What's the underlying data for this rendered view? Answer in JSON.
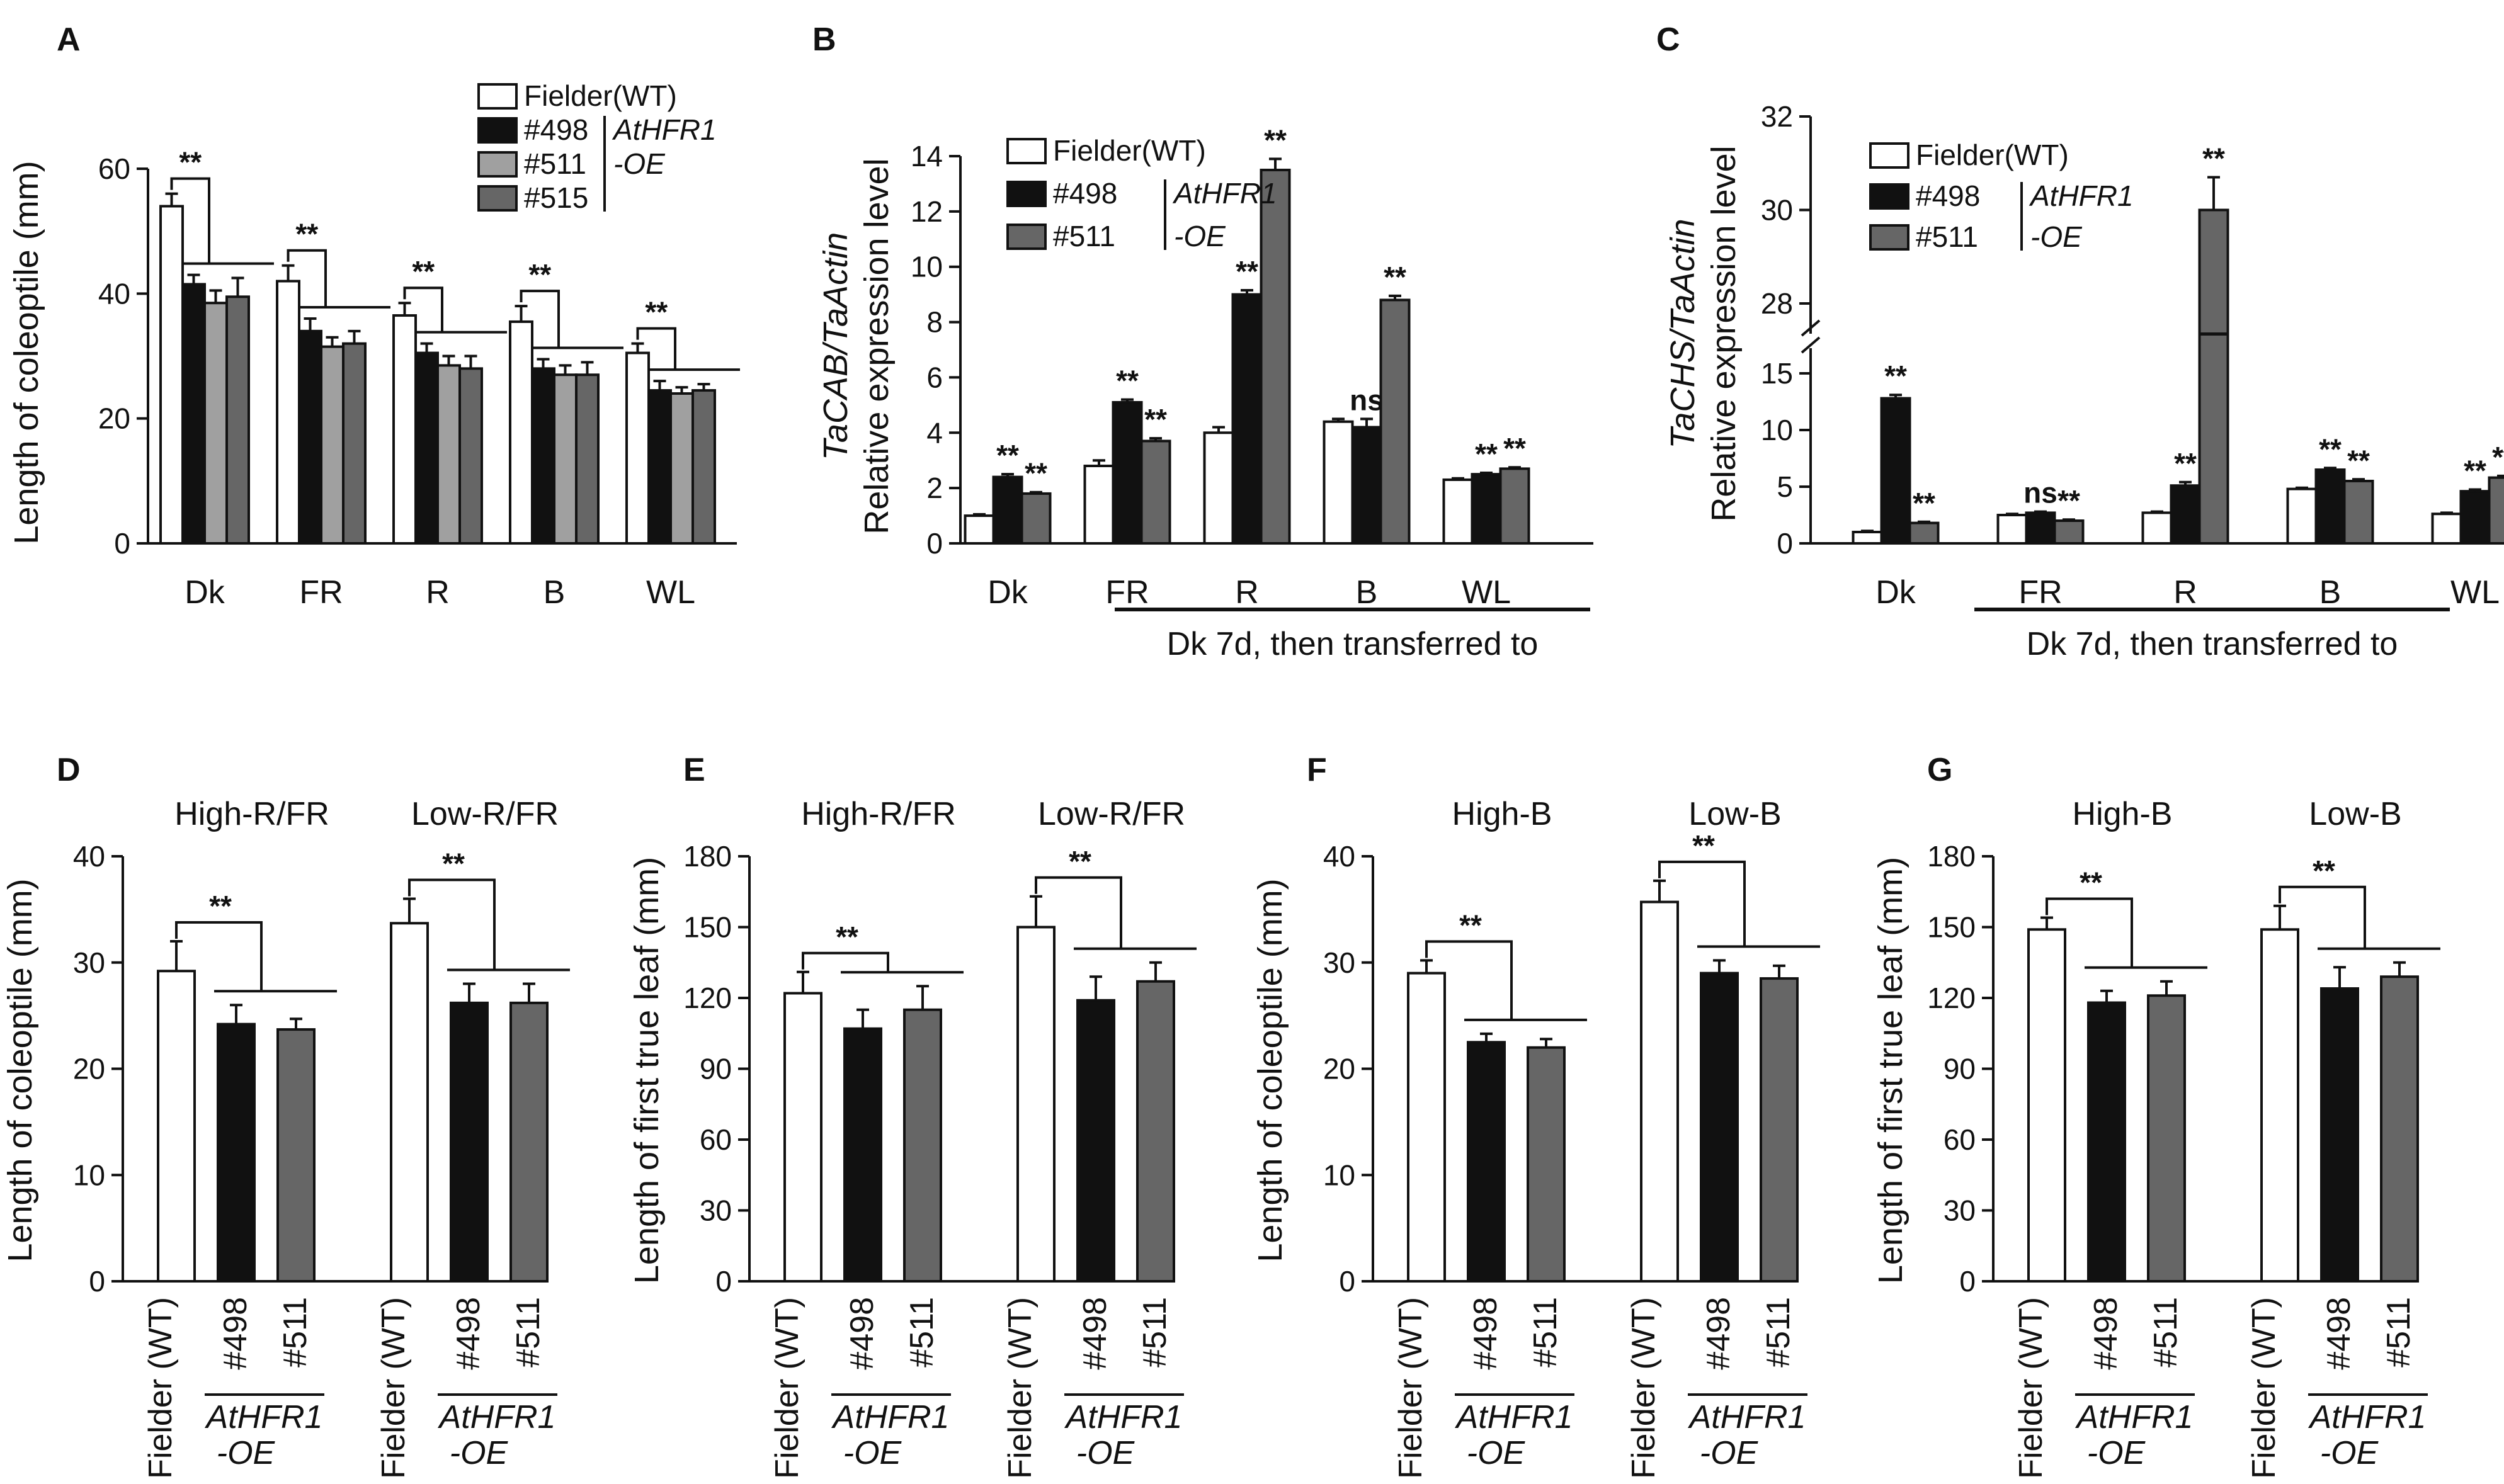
{
  "figure": {
    "bracket_text": "AtHFR1",
    "oe_text": "-OE",
    "transfer_note": "Dk 7d, then transferred to"
  },
  "chart_data": [
    {
      "panel": "A",
      "type": "bar",
      "ylabel": "Length of coleoptile (mm)",
      "ylim": [
        0,
        60
      ],
      "yticks": [
        0,
        20,
        40,
        60
      ],
      "categories": [
        "Dk",
        "FR",
        "R",
        "B",
        "WL"
      ],
      "series": [
        {
          "name": "Fielder(WT)",
          "color": "#ffffff",
          "values": [
            54,
            42,
            36.5,
            35.5,
            30.5
          ],
          "errors": [
            2,
            2.5,
            2,
            2.5,
            1.5
          ]
        },
        {
          "name": "#498",
          "color": "#111111",
          "values": [
            41.5,
            34,
            30.5,
            28,
            24.5
          ],
          "errors": [
            1.5,
            2,
            1.5,
            1.5,
            1.5
          ]
        },
        {
          "name": "#511",
          "color": "#a0a0a0",
          "values": [
            38.5,
            31.5,
            28.5,
            27,
            24
          ],
          "errors": [
            2,
            1.5,
            1.5,
            1.5,
            1
          ]
        },
        {
          "name": "#515",
          "color": "#666666",
          "values": [
            39.5,
            32,
            28,
            27,
            24.5
          ],
          "errors": [
            3,
            2,
            2,
            2,
            1
          ]
        }
      ],
      "significance": [
        "**",
        "**",
        "**",
        "**",
        "**"
      ],
      "legend": [
        "Fielder(WT)",
        "#498",
        "#511",
        "#515"
      ],
      "legend_bracket": "AtHFR1",
      "legend_suffix": "-OE"
    },
    {
      "panel": "B",
      "type": "bar",
      "ylabel_italic": "TaCAB/TaActin",
      "ylabel": "Relative expression level",
      "ylim": [
        0,
        14
      ],
      "yticks": [
        0,
        2,
        4,
        6,
        8,
        10,
        12,
        14
      ],
      "categories": [
        "Dk",
        "FR",
        "R",
        "B",
        "WL"
      ],
      "series": [
        {
          "name": "Fielder(WT)",
          "color": "#ffffff",
          "values": [
            1,
            2.8,
            4,
            4.4,
            2.3
          ],
          "errors": [
            0.05,
            0.2,
            0.2,
            0.1,
            0.05
          ]
        },
        {
          "name": "#498",
          "color": "#111111",
          "values": [
            2.4,
            5.1,
            9,
            4.2,
            2.5
          ],
          "errors": [
            0.1,
            0.1,
            0.15,
            0.3,
            0.05
          ]
        },
        {
          "name": "#511",
          "color": "#666666",
          "values": [
            1.8,
            3.7,
            13.5,
            8.8,
            2.7
          ],
          "errors": [
            0.05,
            0.1,
            0.4,
            0.15,
            0.05
          ]
        }
      ],
      "significance": [
        [
          "",
          "**",
          "**"
        ],
        [
          "",
          "**",
          "**"
        ],
        [
          "",
          "**",
          "**"
        ],
        [
          "",
          "ns",
          "**"
        ],
        [
          "",
          "**",
          "**"
        ]
      ],
      "legend": [
        "Fielder(WT)",
        "#498",
        "#511"
      ],
      "legend_bracket": "AtHFR1",
      "legend_suffix": "-OE",
      "xnote": "Dk 7d, then transferred to"
    },
    {
      "panel": "C",
      "type": "bar",
      "ylabel_italic": "TaCHS/TaActin",
      "ylabel": "Relative expression level",
      "axis_break": true,
      "ylim_lower": [
        0,
        15
      ],
      "yticks_lower": [
        0,
        5,
        10,
        15
      ],
      "ylim_upper": [
        27,
        32
      ],
      "yticks_upper": [
        28,
        30,
        32
      ],
      "categories": [
        "Dk",
        "FR",
        "R",
        "B",
        "WL"
      ],
      "series": [
        {
          "name": "Fielder(WT)",
          "color": "#ffffff",
          "values": [
            1,
            2.5,
            2.7,
            4.8,
            2.6
          ],
          "errors": [
            0.1,
            0.1,
            0.1,
            0.1,
            0.1
          ]
        },
        {
          "name": "#498",
          "color": "#111111",
          "values": [
            12.8,
            2.7,
            5.1,
            6.5,
            4.6
          ],
          "errors": [
            0.3,
            0.1,
            0.3,
            0.15,
            0.15
          ]
        },
        {
          "name": "#511",
          "color": "#666666",
          "values": [
            1.8,
            2,
            30,
            5.5,
            5.8
          ],
          "errors": [
            0.1,
            0.1,
            0.7,
            0.15,
            0.15
          ]
        }
      ],
      "significance": [
        [
          "",
          "**",
          "**"
        ],
        [
          "",
          "ns",
          "**"
        ],
        [
          "",
          "**",
          "**"
        ],
        [
          "",
          "**",
          "**"
        ],
        [
          "",
          "**",
          "**"
        ]
      ],
      "legend": [
        "Fielder(WT)",
        "#498",
        "#511"
      ],
      "legend_bracket": "AtHFR1",
      "legend_suffix": "-OE",
      "xnote": "Dk 7d, then transferred to"
    },
    {
      "panel": "D",
      "type": "bar",
      "ylabel": "Length of coleoptile (mm)",
      "ylim": [
        0,
        40
      ],
      "yticks": [
        0,
        10,
        20,
        30,
        40
      ],
      "groups": [
        {
          "title": "High-R/FR",
          "values": [
            29.2,
            24.2,
            23.7
          ],
          "errors": [
            2.8,
            1.8,
            1.0
          ]
        },
        {
          "title": "Low-R/FR",
          "values": [
            33.7,
            26.2,
            26.2
          ],
          "errors": [
            2.3,
            1.8,
            1.8
          ]
        }
      ],
      "bar_labels": [
        "Fielder (WT)",
        "#498",
        "#511"
      ],
      "colors": [
        "#ffffff",
        "#111111",
        "#666666"
      ],
      "significance": "**"
    },
    {
      "panel": "E",
      "type": "bar",
      "ylabel": "Length of first true leaf (mm)",
      "ylim": [
        0,
        180
      ],
      "yticks": [
        0,
        30,
        60,
        90,
        120,
        150,
        180
      ],
      "groups": [
        {
          "title": "High-R/FR",
          "values": [
            122,
            107,
            115
          ],
          "errors": [
            9,
            8,
            10
          ]
        },
        {
          "title": "Low-R/FR",
          "values": [
            150,
            119,
            127
          ],
          "errors": [
            13,
            10,
            8
          ]
        }
      ],
      "bar_labels": [
        "Fielder (WT)",
        "#498",
        "#511"
      ],
      "colors": [
        "#ffffff",
        "#111111",
        "#666666"
      ],
      "significance": "**"
    },
    {
      "panel": "F",
      "type": "bar",
      "ylabel": "Length of coleoptile (mm)",
      "ylim": [
        0,
        40
      ],
      "yticks": [
        0,
        10,
        20,
        30,
        40
      ],
      "groups": [
        {
          "title": "High-B",
          "values": [
            29,
            22.5,
            22
          ],
          "errors": [
            1.2,
            0.8,
            0.8
          ]
        },
        {
          "title": "Low-B",
          "values": [
            35.7,
            29,
            28.5
          ],
          "errors": [
            2,
            1.2,
            1.2
          ]
        }
      ],
      "bar_labels": [
        "Fielder (WT)",
        "#498",
        "#511"
      ],
      "colors": [
        "#ffffff",
        "#111111",
        "#666666"
      ],
      "significance": "**"
    },
    {
      "panel": "G",
      "type": "bar",
      "ylabel": "Length of first true leaf (mm)",
      "ylim": [
        0,
        180
      ],
      "yticks": [
        0,
        30,
        60,
        90,
        120,
        150,
        180
      ],
      "groups": [
        {
          "title": "High-B",
          "values": [
            149,
            118,
            121
          ],
          "errors": [
            5,
            5,
            6
          ]
        },
        {
          "title": "Low-B",
          "values": [
            149,
            124,
            129
          ],
          "errors": [
            10,
            9,
            6
          ]
        }
      ],
      "bar_labels": [
        "Fielder (WT)",
        "#498",
        "#511"
      ],
      "colors": [
        "#ffffff",
        "#111111",
        "#666666"
      ],
      "significance": "**"
    }
  ]
}
